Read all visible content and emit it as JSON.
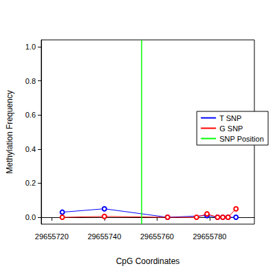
{
  "chart_data": {
    "type": "line",
    "x_label": "CpG Coordinates",
    "y_label": "Methylation Frequency",
    "xlim": [
      29655716,
      29655797
    ],
    "xticks": [
      29655720,
      29655740,
      29655760,
      29655780
    ],
    "ylim": [
      -0.04,
      1.04
    ],
    "yticks": [
      {
        "value": 0,
        "label": "0.0"
      },
      {
        "value": 0.2,
        "label": "0.2"
      },
      {
        "value": 0.4,
        "label": "0.4"
      },
      {
        "value": 0.6,
        "label": "0.6"
      },
      {
        "value": 0.8,
        "label": "0.8"
      },
      {
        "value": 1,
        "label": "1.0"
      }
    ],
    "marker": "circle",
    "legend": "right",
    "series": [
      {
        "name": "T SNP",
        "color": "#0000ff",
        "x": [
          29655724,
          29655740,
          29655764,
          29655779,
          29655783,
          29655785,
          29655787,
          29655790
        ],
        "values": [
          0.03,
          0.05,
          0.0,
          0.01,
          0.0,
          0.0,
          0.0,
          0.0
        ]
      },
      {
        "name": "G SNP",
        "color": "#ff0000",
        "x": [
          29655724,
          29655740,
          29655764,
          29655775,
          29655779,
          29655783,
          29655785,
          29655787,
          29655790
        ],
        "values": [
          0.0,
          0.005,
          0.0,
          0.0,
          0.02,
          0.0,
          0.0,
          0.0,
          0.05
        ]
      }
    ],
    "snp_position": {
      "name": "SNP Position",
      "color": "#00ff00",
      "x": 29655754
    }
  }
}
